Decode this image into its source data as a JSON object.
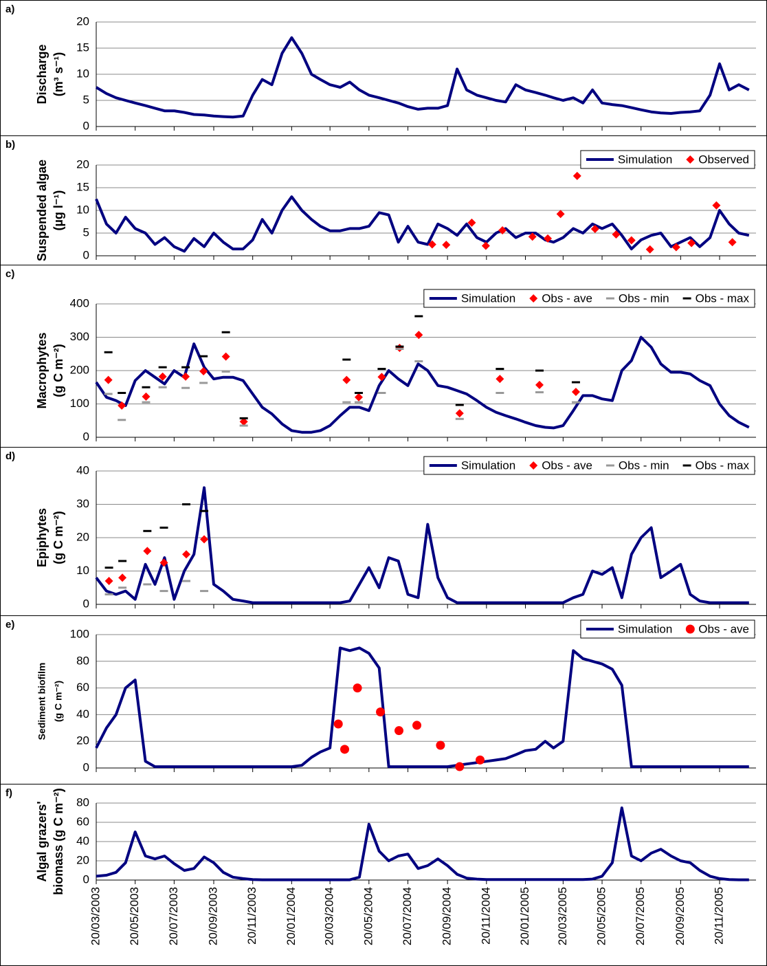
{
  "chart_data": {
    "type": "line",
    "x": [
      "20/03/2003",
      "05/04/2003",
      "20/04/2003",
      "05/05/2003",
      "20/05/2003",
      "05/06/2003",
      "20/06/2003",
      "05/07/2003",
      "20/07/2003",
      "05/08/2003",
      "20/08/2003",
      "05/09/2003",
      "20/09/2003",
      "05/10/2003",
      "20/10/2003",
      "05/11/2003",
      "20/11/2003",
      "05/12/2003",
      "20/12/2003",
      "05/01/2004",
      "20/01/2004",
      "05/02/2004",
      "20/02/2004",
      "05/03/2004",
      "20/03/2004",
      "05/04/2004",
      "20/04/2004",
      "05/05/2004",
      "20/05/2004",
      "05/06/2004",
      "20/06/2004",
      "05/07/2004",
      "20/07/2004",
      "05/08/2004",
      "20/08/2004",
      "05/09/2004",
      "20/09/2004",
      "05/10/2004",
      "20/10/2004",
      "05/11/2004",
      "20/11/2004",
      "05/12/2004",
      "20/12/2004",
      "05/01/2005",
      "20/01/2005",
      "05/02/2005",
      "20/02/2005",
      "05/03/2005",
      "20/03/2005",
      "05/04/2005",
      "20/04/2005",
      "05/05/2005",
      "20/05/2005",
      "05/06/2005",
      "20/06/2005",
      "05/07/2005",
      "20/07/2005",
      "05/08/2005",
      "20/08/2005",
      "05/09/2005",
      "20/09/2005",
      "05/10/2005",
      "20/10/2005",
      "05/11/2005",
      "20/11/2005",
      "05/12/2005",
      "20/12/2005",
      "05/01/2006"
    ],
    "xlim": [
      "20/03/2003",
      "16/01/2006"
    ],
    "xticks": [
      "20/03/2003",
      "20/05/2003",
      "20/07/2003",
      "20/09/2003",
      "20/11/2003",
      "20/01/2004",
      "20/03/2004",
      "20/05/2004",
      "20/07/2004",
      "20/09/2004",
      "20/11/2004",
      "20/01/2005",
      "20/03/2005",
      "20/05/2005",
      "20/07/2005",
      "20/09/2005",
      "20/11/2005"
    ],
    "panels": [
      {
        "label": "a)",
        "ylabel": [
          "Discharge",
          "(m³ s⁻¹)"
        ],
        "ylim": [
          0,
          20
        ],
        "yticks": [
          0,
          5,
          10,
          15,
          20
        ],
        "grid": true,
        "series": [
          {
            "type": "line",
            "color": "#000080",
            "values": [
              7.5,
              6.3,
              5.5,
              5,
              4.5,
              4,
              3.5,
              3,
              3,
              2.7,
              2.3,
              2.2,
              2,
              1.9,
              1.8,
              2,
              6,
              9,
              8,
              14,
              17,
              14,
              10,
              9,
              8,
              7.5,
              8.5,
              7,
              6,
              5.5,
              5,
              4.5,
              3.8,
              3.3,
              3.5,
              3.5,
              4,
              11,
              7,
              6,
              5.5,
              5,
              4.7,
              8,
              7,
              6.5,
              6,
              5.5,
              5,
              5.5,
              4.5,
              7,
              4.5,
              4.2,
              4,
              3.6,
              3.2,
              2.8,
              2.6,
              2.5,
              2.7,
              2.8,
              3,
              6,
              12,
              7,
              8,
              7
            ]
          }
        ]
      },
      {
        "label": "b)",
        "ylabel": [
          "Suspended algae",
          "(µg l⁻¹)"
        ],
        "ylim": [
          0,
          20
        ],
        "yticks": [
          0,
          5,
          10,
          15,
          20
        ],
        "grid": true,
        "legend": "upper right",
        "series": [
          {
            "name": "Simulation",
            "type": "line",
            "color": "#000080",
            "values": [
              12.5,
              7,
              5,
              8.5,
              6,
              5,
              2.5,
              4,
              2,
              1,
              3.8,
              2,
              5,
              3,
              1.5,
              1.5,
              3.5,
              8,
              5,
              10,
              13,
              10,
              8,
              6.5,
              5.5,
              5.5,
              6,
              6,
              6.5,
              9.5,
              9,
              3,
              6.5,
              3,
              2.5,
              7,
              6,
              4.5,
              7,
              4,
              3,
              5,
              6,
              4,
              5,
              5,
              3.5,
              3,
              4,
              6,
              5,
              7,
              6,
              7,
              4.5,
              1.5,
              3.5,
              4.5,
              5,
              2,
              3,
              4,
              2,
              4,
              10,
              7,
              5,
              4.5
            ]
          },
          {
            "name": "Observed",
            "type": "scatter",
            "marker": "diamond",
            "color": "#ff0000",
            "x": [
              "27/08/2004",
              "18/09/2004",
              "28/10/2004",
              "19/11/2004",
              "15/12/2004",
              "31/01/2005",
              "24/02/2005",
              "16/03/2005",
              "11/04/2005",
              "09/05/2005",
              "11/06/2005",
              "05/07/2005",
              "03/08/2005",
              "13/09/2005",
              "07/10/2005",
              "15/11/2005",
              "10/12/2005"
            ],
            "values": [
              2.5,
              2.4,
              7.3,
              2.2,
              5.6,
              4.2,
              3.8,
              9.2,
              17.6,
              5.9,
              4.7,
              3.4,
              1.4,
              1.9,
              2.8,
              11.1,
              3
            ]
          }
        ]
      },
      {
        "label": "c)",
        "ylabel": [
          "Macrophytes",
          "(g C m⁻²)"
        ],
        "ylim": [
          0,
          400
        ],
        "yticks": [
          0,
          100,
          200,
          300,
          400
        ],
        "grid": true,
        "legend": "upper right",
        "series": [
          {
            "name": "Simulation",
            "type": "line",
            "color": "#000080",
            "values": [
              165,
              120,
              110,
              95,
              170,
              200,
              180,
              160,
              200,
              180,
              280,
              210,
              175,
              180,
              180,
              170,
              130,
              90,
              70,
              40,
              20,
              15,
              15,
              20,
              35,
              65,
              90,
              90,
              80,
              155,
              200,
              175,
              155,
              220,
              200,
              155,
              150,
              140,
              130,
              110,
              90,
              75,
              65,
              55,
              45,
              35,
              30,
              28,
              35,
              80,
              125,
              125,
              115,
              110,
              200,
              230,
              300,
              270,
              220,
              195,
              195,
              190,
              170,
              155,
              100,
              65,
              45,
              30
            ]
          },
          {
            "name": "Obs - ave",
            "type": "scatter",
            "marker": "diamond",
            "color": "#ff0000",
            "x": [
              "08/04/2003",
              "29/04/2003",
              "06/06/2003",
              "02/07/2003",
              "07/08/2003",
              "04/09/2003",
              "09/10/2003",
              "06/11/2003",
              "15/04/2004",
              "04/05/2004",
              "09/06/2004",
              "07/07/2004",
              "06/08/2004",
              "09/10/2004",
              "11/12/2004",
              "11/02/2005",
              "09/04/2005"
            ],
            "values": [
              172,
              95,
              122,
              182,
              182,
              198,
              242,
              47,
              172,
              120,
              181,
              268,
              307,
              72,
              175,
              157,
              136
            ]
          },
          {
            "name": "Obs - min",
            "type": "scatter",
            "marker": "dash",
            "color": "#999999",
            "x": [
              "08/04/2003",
              "29/04/2003",
              "06/06/2003",
              "02/07/2003",
              "07/08/2003",
              "04/09/2003",
              "09/10/2003",
              "06/11/2003",
              "15/04/2004",
              "04/05/2004",
              "09/06/2004",
              "07/07/2004",
              "06/08/2004",
              "09/10/2004",
              "11/12/2004",
              "11/02/2005",
              "09/04/2005"
            ],
            "values": [
              130,
              52,
              105,
              150,
              148,
              163,
              197,
              35,
              105,
              105,
              133,
              265,
              228,
              55,
              133,
              135,
              105
            ]
          },
          {
            "name": "Obs - max",
            "type": "scatter",
            "marker": "dash",
            "color": "#000000",
            "x": [
              "08/04/2003",
              "29/04/2003",
              "06/06/2003",
              "02/07/2003",
              "07/08/2003",
              "04/09/2003",
              "09/10/2003",
              "06/11/2003",
              "15/04/2004",
              "04/05/2004",
              "09/06/2004",
              "07/07/2004",
              "06/08/2004",
              "09/10/2004",
              "11/12/2004",
              "11/02/2005",
              "09/04/2005"
            ],
            "values": [
              255,
              133,
              150,
              210,
              210,
              243,
              315,
              57,
              233,
              133,
              205,
              272,
              363,
              97,
              205,
              200,
              165
            ]
          }
        ]
      },
      {
        "label": "d)",
        "ylabel": [
          "Epiphytes",
          "(g C m⁻²)"
        ],
        "ylim": [
          0,
          40
        ],
        "yticks": [
          0,
          10,
          20,
          30,
          40
        ],
        "grid": true,
        "legend": "upper right",
        "series": [
          {
            "name": "Simulation",
            "type": "line",
            "color": "#000080",
            "values": [
              8,
              4,
              3,
              4,
              1.5,
              12,
              6,
              14,
              1.5,
              10,
              15,
              35,
              6,
              4,
              1.5,
              1,
              0.5,
              0.5,
              0.5,
              0.5,
              0.5,
              0.5,
              0.5,
              0.5,
              0.5,
              0.5,
              1,
              6,
              11,
              5,
              14,
              13,
              3,
              2,
              24,
              8,
              2,
              0.5,
              0.5,
              0.5,
              0.5,
              0.5,
              0.5,
              0.5,
              0.5,
              0.5,
              0.5,
              0.5,
              0.5,
              2,
              3,
              10,
              9,
              11,
              2,
              15,
              20,
              23,
              8,
              10,
              12,
              3,
              1,
              0.5,
              0.5,
              0.5,
              0.5,
              0.5
            ]
          },
          {
            "name": "Obs - ave",
            "type": "scatter",
            "marker": "diamond",
            "color": "#ff0000",
            "x": [
              "09/04/2003",
              "30/04/2003",
              "08/06/2003",
              "04/07/2003",
              "08/08/2003",
              "05/09/2003"
            ],
            "values": [
              7,
              8,
              16,
              12.5,
              15,
              19.5
            ]
          },
          {
            "name": "Obs - min",
            "type": "scatter",
            "marker": "dash",
            "color": "#999999",
            "x": [
              "09/04/2003",
              "30/04/2003",
              "08/06/2003",
              "04/07/2003",
              "08/08/2003",
              "05/09/2003"
            ],
            "values": [
              3,
              5,
              6,
              4,
              7,
              4
            ]
          },
          {
            "name": "Obs - max",
            "type": "scatter",
            "marker": "dash",
            "color": "#000000",
            "x": [
              "09/04/2003",
              "30/04/2003",
              "08/06/2003",
              "04/07/2003",
              "08/08/2003",
              "05/09/2003"
            ],
            "values": [
              11,
              13,
              22,
              23,
              30,
              28
            ]
          }
        ]
      },
      {
        "label": "e)",
        "ylabel": [
          "Sediment biofilm",
          "(g C m⁻²)"
        ],
        "ylim": [
          0,
          100
        ],
        "yticks": [
          0,
          20,
          40,
          60,
          80,
          100
        ],
        "grid": true,
        "legend": "upper right",
        "series": [
          {
            "name": "Simulation",
            "type": "line",
            "color": "#000080",
            "values": [
              15,
              30,
              40,
              60,
              66,
              5,
              1,
              1,
              1,
              1,
              1,
              1,
              1,
              1,
              1,
              1,
              1,
              1,
              1,
              1,
              1,
              2,
              8,
              12,
              15,
              90,
              88,
              90,
              86,
              75,
              1,
              1,
              1,
              1,
              1,
              1,
              1,
              2,
              3,
              4,
              5,
              6,
              7,
              10,
              13,
              14,
              20,
              15,
              20,
              88,
              82,
              80,
              78,
              74,
              62,
              1,
              1,
              1,
              1,
              1,
              1,
              1,
              1,
              1,
              1,
              1,
              1,
              1
            ]
          },
          {
            "name": "Obs - ave",
            "type": "scatter",
            "marker": "circle",
            "color": "#ff0000",
            "x": [
              "02/04/2004",
              "12/04/2004",
              "02/05/2004",
              "07/06/2004",
              "06/07/2004",
              "03/08/2004",
              "09/09/2004",
              "09/10/2004",
              "10/11/2004"
            ],
            "values": [
              33,
              14,
              60,
              42,
              28,
              32,
              17,
              1,
              6
            ]
          }
        ]
      },
      {
        "label": "f)",
        "ylabel": [
          "Algal grazers'",
          "biomass (g C m⁻²)"
        ],
        "ylim": [
          0,
          80
        ],
        "yticks": [
          0,
          20,
          40,
          60,
          80
        ],
        "grid": true,
        "series": [
          {
            "type": "line",
            "color": "#000080",
            "values": [
              4,
              5,
              8,
              18,
              50,
              25,
              22,
              25,
              17,
              10,
              12,
              24,
              18,
              8,
              3,
              1.5,
              0.5,
              0.3,
              0.3,
              0.3,
              0.3,
              0.3,
              0.3,
              0.3,
              0.3,
              0.3,
              0.3,
              3,
              58,
              30,
              20,
              25,
              27,
              12,
              15,
              22,
              15,
              6,
              2,
              1,
              0.5,
              0.5,
              0.5,
              0.5,
              0.5,
              0.5,
              0.5,
              0.5,
              0.5,
              0.5,
              0.5,
              1,
              4,
              18,
              75,
              25,
              20,
              28,
              32,
              25,
              20,
              18,
              10,
              4,
              1.5,
              0.5,
              0.3,
              0.3
            ]
          }
        ]
      }
    ]
  }
}
